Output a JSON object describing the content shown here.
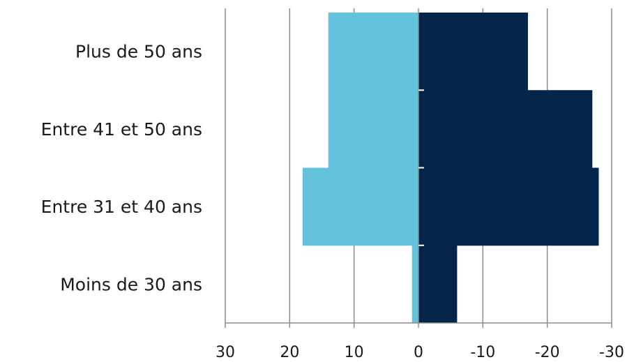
{
  "chart_data": {
    "type": "bar",
    "orientation": "horizontal",
    "subtype": "population-pyramid",
    "categories": [
      "Moins de 30 ans",
      "Entre 31 et 40 ans",
      "Entre 41 et 50 ans",
      "Plus de 50 ans"
    ],
    "series": [
      {
        "color": "#63c2dc",
        "side": "left",
        "values": [
          1,
          18,
          14,
          14
        ]
      },
      {
        "color": "#03254a",
        "side": "right",
        "values": [
          6,
          28,
          27,
          17
        ]
      }
    ],
    "xaxis": {
      "ticks": [
        30,
        20,
        10,
        0,
        -10,
        -20,
        -30
      ],
      "tick_labels": [
        "30",
        "20",
        "10",
        "0",
        "-10",
        "-20",
        "-30"
      ],
      "range": [
        30,
        -30
      ]
    },
    "grid": "vertical",
    "bar_gap": 0,
    "title": "",
    "xlabel": "",
    "ylabel": ""
  }
}
